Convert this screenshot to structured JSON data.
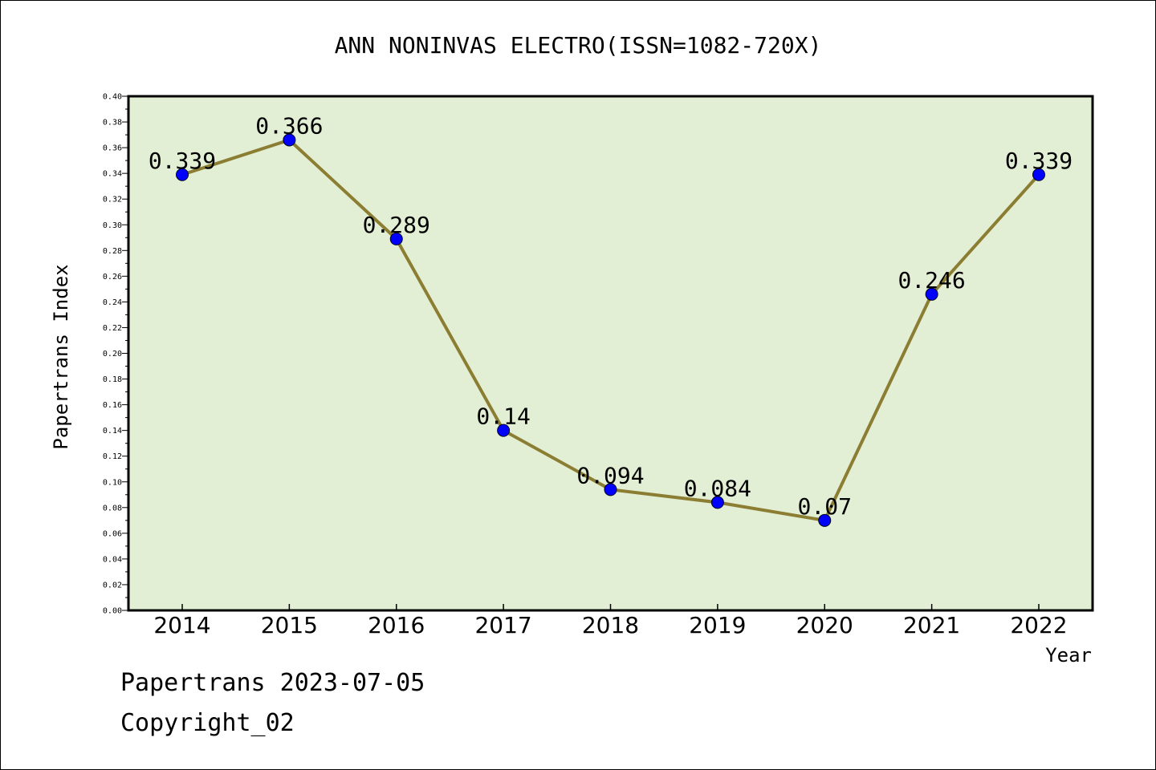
{
  "chart_data": {
    "type": "line",
    "title": "ANN NONINVAS ELECTRO(ISSN=1082-720X)",
    "xlabel": "Year",
    "ylabel": "Papertrans Index",
    "categories": [
      "2014",
      "2015",
      "2016",
      "2017",
      "2018",
      "2019",
      "2020",
      "2021",
      "2022"
    ],
    "series": [
      {
        "values": [
          0.339,
          0.366,
          0.289,
          0.14,
          0.094,
          0.084,
          0.07,
          0.246,
          0.339
        ],
        "labels": [
          "0.339",
          "0.366",
          "0.289",
          "0.14",
          "0.094",
          "0.084",
          "0.07",
          "0.246",
          "0.339"
        ]
      }
    ],
    "ylim": [
      0,
      0.4
    ],
    "ytick_step": 0.02,
    "yticks": [
      "0.00",
      "0.02",
      "0.04",
      "0.06",
      "0.08",
      "0.10",
      "0.12",
      "0.14",
      "0.16",
      "0.18",
      "0.20",
      "0.22",
      "0.24",
      "0.26",
      "0.28",
      "0.30",
      "0.32",
      "0.34",
      "0.36",
      "0.38",
      "0.40"
    ],
    "grid": false,
    "legend": "none",
    "colors": {
      "plot_background": "#e2efd4",
      "line": "#8b7d32",
      "marker": "#0000ff"
    }
  },
  "footer": {
    "line1": "Papertrans 2023-07-05",
    "line2": "Copyright_02"
  }
}
